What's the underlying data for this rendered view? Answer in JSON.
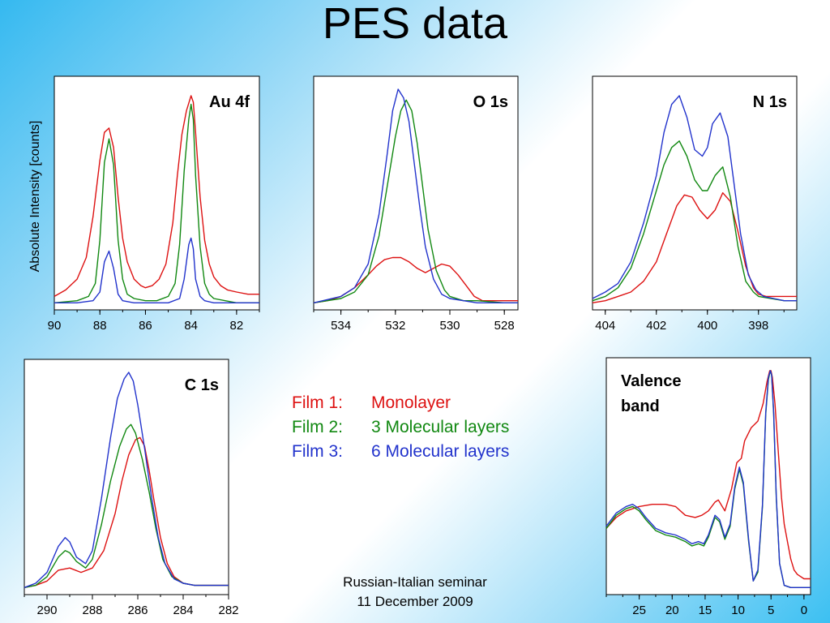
{
  "title": "PES data",
  "ylabel": "Absolute Intensity [counts]",
  "legend": [
    {
      "film": "Film 1:",
      "desc": "Monolayer",
      "color": "#dd1111"
    },
    {
      "film": "Film 2:",
      "desc": "3 Molecular layers",
      "color": "#118811"
    },
    {
      "film": "Film 3:",
      "desc": "6 Molecular layers",
      "color": "#2233cc"
    }
  ],
  "footer": {
    "line1": "Russian-Italian seminar",
    "line2": "11 December 2009"
  },
  "chart_data": [
    {
      "id": "au4f",
      "type": "line",
      "title": "Au 4f",
      "xlim": [
        90,
        81
      ],
      "ylim": [
        0,
        1
      ],
      "xticks": [
        90,
        88,
        86,
        84,
        82
      ],
      "series": [
        {
          "color": "#dd1111",
          "x": [
            90,
            89.5,
            89,
            88.6,
            88.3,
            88,
            87.8,
            87.6,
            87.4,
            87.2,
            87,
            86.8,
            86.5,
            86.2,
            86,
            85.7,
            85.4,
            85.1,
            84.8,
            84.6,
            84.4,
            84.2,
            84,
            83.9,
            83.8,
            83.6,
            83.4,
            83.2,
            83,
            82.7,
            82.4,
            82,
            81.5,
            81
          ],
          "y": [
            0.04,
            0.07,
            0.12,
            0.22,
            0.41,
            0.67,
            0.8,
            0.82,
            0.73,
            0.5,
            0.31,
            0.2,
            0.12,
            0.09,
            0.08,
            0.09,
            0.12,
            0.19,
            0.38,
            0.6,
            0.79,
            0.9,
            0.97,
            0.94,
            0.8,
            0.5,
            0.3,
            0.19,
            0.13,
            0.09,
            0.07,
            0.06,
            0.05,
            0.05
          ]
        },
        {
          "color": "#118811",
          "x": [
            90,
            89,
            88.5,
            88.2,
            88,
            87.8,
            87.6,
            87.4,
            87.2,
            87,
            86.8,
            86.5,
            86,
            85.5,
            85,
            84.7,
            84.5,
            84.3,
            84.1,
            84,
            83.9,
            83.8,
            83.6,
            83.4,
            83.2,
            83,
            82.5,
            82,
            81
          ],
          "y": [
            0.01,
            0.02,
            0.04,
            0.1,
            0.3,
            0.66,
            0.77,
            0.65,
            0.3,
            0.12,
            0.05,
            0.03,
            0.02,
            0.02,
            0.04,
            0.1,
            0.28,
            0.62,
            0.86,
            0.93,
            0.86,
            0.6,
            0.27,
            0.1,
            0.05,
            0.03,
            0.02,
            0.01,
            0.01
          ]
        },
        {
          "color": "#2233cc",
          "x": [
            90,
            89,
            88.3,
            88,
            87.8,
            87.6,
            87.4,
            87.2,
            87,
            86.5,
            86,
            85,
            84.5,
            84.3,
            84.1,
            84,
            83.9,
            83.8,
            83.6,
            83.4,
            83,
            82,
            81
          ],
          "y": [
            0.01,
            0.01,
            0.02,
            0.06,
            0.2,
            0.25,
            0.17,
            0.05,
            0.02,
            0.01,
            0.01,
            0.01,
            0.03,
            0.12,
            0.28,
            0.31,
            0.26,
            0.12,
            0.04,
            0.02,
            0.01,
            0.01,
            0.01
          ]
        }
      ]
    },
    {
      "id": "o1s",
      "type": "line",
      "title": "O 1s",
      "xlim": [
        535,
        527.5
      ],
      "ylim": [
        0,
        1
      ],
      "xticks": [
        534,
        532,
        530,
        528
      ],
      "series": [
        {
          "color": "#dd1111",
          "x": [
            535,
            534.5,
            534,
            533.5,
            533,
            532.7,
            532.4,
            532.1,
            531.8,
            531.5,
            531.2,
            530.9,
            530.6,
            530.3,
            530,
            529.7,
            529.4,
            529.1,
            528.8,
            528.5,
            528,
            527.5
          ],
          "y": [
            0.01,
            0.02,
            0.04,
            0.08,
            0.14,
            0.18,
            0.21,
            0.22,
            0.22,
            0.2,
            0.17,
            0.15,
            0.17,
            0.19,
            0.18,
            0.14,
            0.09,
            0.04,
            0.02,
            0.02,
            0.02,
            0.02
          ]
        },
        {
          "color": "#118811",
          "x": [
            535,
            534,
            533.5,
            533,
            532.6,
            532.3,
            532,
            531.8,
            531.6,
            531.4,
            531.2,
            531,
            530.8,
            530.5,
            530.2,
            530,
            529.5,
            529,
            528,
            527.5
          ],
          "y": [
            0.01,
            0.03,
            0.06,
            0.14,
            0.32,
            0.55,
            0.78,
            0.9,
            0.95,
            0.9,
            0.75,
            0.55,
            0.35,
            0.16,
            0.07,
            0.04,
            0.02,
            0.02,
            0.01,
            0.01
          ]
        },
        {
          "color": "#2233cc",
          "x": [
            535,
            534,
            533.5,
            533,
            532.6,
            532.3,
            532.1,
            531.9,
            531.7,
            531.5,
            531.3,
            531.1,
            530.9,
            530.6,
            530.3,
            530,
            529.5,
            529,
            528,
            527.5
          ],
          "y": [
            0.01,
            0.04,
            0.08,
            0.19,
            0.42,
            0.7,
            0.9,
            1.0,
            0.96,
            0.85,
            0.65,
            0.45,
            0.27,
            0.12,
            0.05,
            0.03,
            0.02,
            0.01,
            0.01,
            0.01
          ]
        }
      ]
    },
    {
      "id": "n1s",
      "type": "line",
      "title": "N 1s",
      "xlim": [
        404.5,
        396.5
      ],
      "ylim": [
        0,
        1
      ],
      "xticks": [
        404,
        402,
        400,
        398
      ],
      "series": [
        {
          "color": "#dd1111",
          "x": [
            404.5,
            404,
            403.5,
            403,
            402.5,
            402,
            401.6,
            401.2,
            400.9,
            400.6,
            400.3,
            400,
            399.7,
            399.4,
            399.1,
            398.8,
            398.5,
            398.2,
            398,
            397.7,
            397.4,
            397,
            396.5
          ],
          "y": [
            0.01,
            0.02,
            0.04,
            0.06,
            0.11,
            0.2,
            0.33,
            0.46,
            0.51,
            0.5,
            0.44,
            0.4,
            0.44,
            0.52,
            0.48,
            0.34,
            0.18,
            0.08,
            0.05,
            0.04,
            0.04,
            0.04,
            0.04
          ]
        },
        {
          "color": "#118811",
          "x": [
            404.5,
            404,
            403.5,
            403,
            402.5,
            402,
            401.7,
            401.4,
            401.1,
            400.8,
            400.5,
            400.2,
            400,
            399.7,
            399.4,
            399.1,
            398.8,
            398.5,
            398.2,
            398,
            397.5,
            397,
            396.5
          ],
          "y": [
            0.02,
            0.04,
            0.08,
            0.17,
            0.33,
            0.53,
            0.65,
            0.73,
            0.76,
            0.69,
            0.58,
            0.53,
            0.53,
            0.6,
            0.64,
            0.5,
            0.27,
            0.11,
            0.06,
            0.04,
            0.03,
            0.02,
            0.02
          ]
        },
        {
          "color": "#2233cc",
          "x": [
            404.5,
            404,
            403.5,
            403,
            402.5,
            402,
            401.7,
            401.4,
            401.1,
            400.8,
            400.5,
            400.2,
            400,
            399.8,
            399.5,
            399.2,
            399,
            398.7,
            398.4,
            398.1,
            397.8,
            397.4,
            397,
            396.5
          ],
          "y": [
            0.03,
            0.06,
            0.1,
            0.2,
            0.38,
            0.6,
            0.8,
            0.93,
            0.97,
            0.87,
            0.72,
            0.69,
            0.73,
            0.84,
            0.89,
            0.78,
            0.6,
            0.33,
            0.14,
            0.07,
            0.04,
            0.03,
            0.02,
            0.02
          ]
        }
      ]
    },
    {
      "id": "c1s",
      "type": "line",
      "title": "C 1s",
      "xlim": [
        291,
        282
      ],
      "ylim": [
        0,
        1
      ],
      "xticks": [
        290,
        288,
        286,
        284,
        282
      ],
      "series": [
        {
          "color": "#dd1111",
          "x": [
            291,
            290.5,
            290,
            289.5,
            289,
            288.5,
            288,
            287.5,
            287,
            286.7,
            286.4,
            286.1,
            285.9,
            285.7,
            285.5,
            285.3,
            285,
            284.7,
            284.4,
            284,
            283.5,
            283,
            282
          ],
          "y": [
            0.01,
            0.02,
            0.04,
            0.09,
            0.1,
            0.08,
            0.1,
            0.18,
            0.35,
            0.5,
            0.62,
            0.69,
            0.7,
            0.66,
            0.55,
            0.42,
            0.24,
            0.12,
            0.06,
            0.03,
            0.02,
            0.02,
            0.02
          ]
        },
        {
          "color": "#118811",
          "x": [
            291,
            290.5,
            290,
            289.5,
            289.2,
            289,
            288.7,
            288.3,
            288,
            287.6,
            287.2,
            286.8,
            286.5,
            286.3,
            286.1,
            285.8,
            285.5,
            285.2,
            284.9,
            284.5,
            284,
            283.5,
            283,
            282
          ],
          "y": [
            0.01,
            0.02,
            0.06,
            0.15,
            0.18,
            0.17,
            0.13,
            0.1,
            0.14,
            0.3,
            0.5,
            0.66,
            0.74,
            0.76,
            0.72,
            0.6,
            0.45,
            0.28,
            0.14,
            0.06,
            0.03,
            0.02,
            0.02,
            0.02
          ]
        },
        {
          "color": "#2233cc",
          "x": [
            291,
            290.5,
            290,
            289.5,
            289.2,
            289,
            288.7,
            288.3,
            288,
            287.6,
            287.2,
            286.9,
            286.6,
            286.4,
            286.2,
            286,
            285.7,
            285.4,
            285.1,
            284.8,
            284.4,
            284,
            283.5,
            283,
            282
          ],
          "y": [
            0.01,
            0.03,
            0.08,
            0.2,
            0.24,
            0.22,
            0.15,
            0.12,
            0.18,
            0.42,
            0.7,
            0.88,
            0.97,
            1.0,
            0.96,
            0.85,
            0.65,
            0.43,
            0.24,
            0.12,
            0.05,
            0.03,
            0.02,
            0.02,
            0.02
          ]
        }
      ]
    },
    {
      "id": "vb",
      "type": "line",
      "title": "Valence band",
      "xlim": [
        30,
        -1
      ],
      "ylim": [
        0,
        1
      ],
      "xticks": [
        25,
        20,
        15,
        10,
        5,
        0
      ],
      "series": [
        {
          "color": "#dd1111",
          "x": [
            30,
            28.5,
            27,
            25,
            23,
            21,
            19.5,
            18,
            16.5,
            15.5,
            14.5,
            13.5,
            13,
            12,
            11,
            10.2,
            9.5,
            9,
            8,
            7,
            6.2,
            5.6,
            5.2,
            5,
            4.8,
            4.4,
            3.9,
            3.4,
            3,
            2.5,
            2,
            1.5,
            1,
            0,
            -1
          ],
          "y": [
            0.28,
            0.33,
            0.36,
            0.38,
            0.39,
            0.39,
            0.38,
            0.34,
            0.33,
            0.34,
            0.36,
            0.4,
            0.41,
            0.36,
            0.46,
            0.58,
            0.6,
            0.68,
            0.74,
            0.77,
            0.85,
            0.95,
            1.0,
            1.0,
            0.97,
            0.85,
            0.63,
            0.42,
            0.3,
            0.22,
            0.14,
            0.09,
            0.07,
            0.05,
            0.05
          ]
        },
        {
          "color": "#118811",
          "x": [
            30,
            28.5,
            27,
            26,
            25,
            24,
            22.5,
            21,
            19.5,
            18,
            17,
            16,
            15.2,
            14.5,
            13.5,
            12.8,
            12,
            11.2,
            10.5,
            9.8,
            9.2,
            8.4,
            7.7,
            7,
            6.3,
            5.8,
            5.4,
            5.1,
            4.9,
            4.6,
            4.2,
            3.7,
            3,
            2,
            1,
            0,
            -1
          ],
          "y": [
            0.28,
            0.34,
            0.37,
            0.38,
            0.36,
            0.32,
            0.27,
            0.25,
            0.24,
            0.22,
            0.2,
            0.21,
            0.2,
            0.24,
            0.33,
            0.31,
            0.23,
            0.29,
            0.46,
            0.55,
            0.48,
            0.22,
            0.04,
            0.08,
            0.38,
            0.8,
            0.96,
            1.0,
            0.98,
            0.8,
            0.42,
            0.12,
            0.02,
            0.01,
            0.01,
            0.01,
            0.01
          ]
        },
        {
          "color": "#2233cc",
          "x": [
            30,
            28.5,
            27,
            26,
            25,
            24,
            22.5,
            21,
            19.5,
            18,
            17,
            16,
            15.2,
            14.5,
            13.5,
            12.8,
            12,
            11.2,
            10.5,
            9.8,
            9.2,
            8.4,
            7.7,
            7,
            6.3,
            5.8,
            5.4,
            5.1,
            4.9,
            4.6,
            4.2,
            3.7,
            3,
            2,
            1,
            0,
            -1
          ],
          "y": [
            0.29,
            0.35,
            0.38,
            0.39,
            0.37,
            0.33,
            0.28,
            0.26,
            0.25,
            0.23,
            0.21,
            0.22,
            0.21,
            0.25,
            0.34,
            0.32,
            0.24,
            0.3,
            0.47,
            0.56,
            0.49,
            0.23,
            0.04,
            0.09,
            0.39,
            0.81,
            0.97,
            1.0,
            0.98,
            0.81,
            0.43,
            0.12,
            0.02,
            0.01,
            0.01,
            0.01,
            0.01
          ]
        }
      ]
    }
  ]
}
